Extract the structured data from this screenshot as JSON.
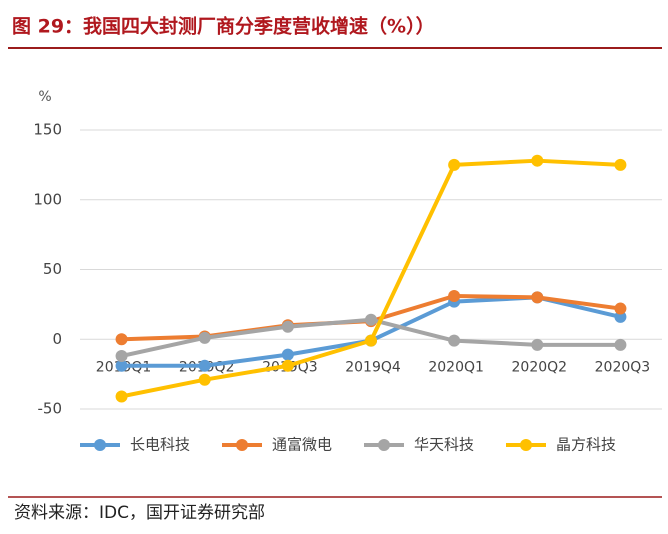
{
  "chart_data": {
    "type": "line",
    "title": "图 29：我国四大封测厂商分季度营收增速（%））",
    "y_label": "%",
    "categories": [
      "2019Q1",
      "2019Q2",
      "2019Q3",
      "2019Q4",
      "2020Q1",
      "2020Q2",
      "2020Q3"
    ],
    "series": [
      {
        "name": "长电科技",
        "color": "#5b9bd5",
        "values": [
          -19,
          -19,
          -11,
          -1,
          27,
          30,
          16
        ]
      },
      {
        "name": "通富微电",
        "color": "#ed7d31",
        "values": [
          0,
          2,
          10,
          13,
          31,
          30,
          22
        ]
      },
      {
        "name": "华天科技",
        "color": "#a5a5a5",
        "values": [
          -12,
          1,
          9,
          14,
          -1,
          -4,
          -4
        ]
      },
      {
        "name": "晶方科技",
        "color": "#ffc000",
        "values": [
          -41,
          -29,
          -19,
          -1,
          125,
          128,
          125
        ]
      }
    ],
    "ylim": [
      -50,
      150
    ],
    "yticks": [
      -50,
      0,
      50,
      100,
      150
    ],
    "grid": true,
    "legend": "bottom",
    "source": "资料来源：IDC，国开证券研究部"
  }
}
